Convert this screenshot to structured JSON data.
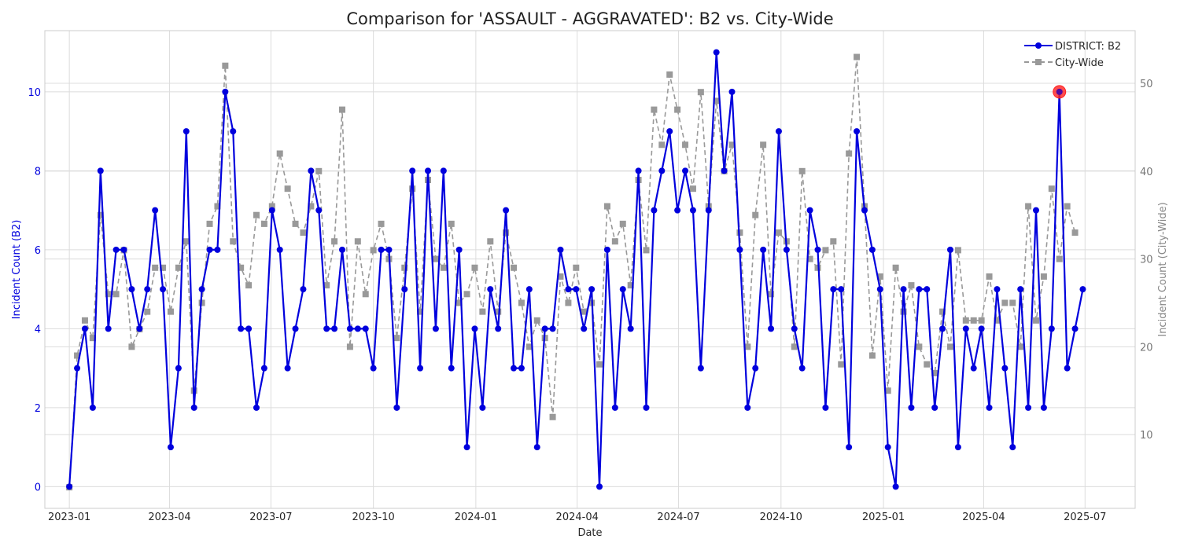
{
  "chart_data": {
    "type": "line",
    "title": "Comparison for 'ASSAULT - AGGRAVATED': B2 vs. City-Wide",
    "xlabel": "Date",
    "ylabel_left": "Incident Count (B2)",
    "ylabel_right": "Incident Count (City-Wide)",
    "ylim_left": [
      -0.55,
      11.55
    ],
    "ylim_right": [
      1.6,
      56.0
    ],
    "yticks_left": [
      0,
      2,
      4,
      6,
      8,
      10
    ],
    "yticks_right": [
      10,
      20,
      30,
      40,
      50
    ],
    "xlim": [
      "2022-12-10",
      "2025-08-15"
    ],
    "xticks": [
      {
        "date": "2023-01-01",
        "label": "2023-01"
      },
      {
        "date": "2023-04-01",
        "label": "2023-04"
      },
      {
        "date": "2023-07-01",
        "label": "2023-07"
      },
      {
        "date": "2023-10-01",
        "label": "2023-10"
      },
      {
        "date": "2024-01-01",
        "label": "2024-01"
      },
      {
        "date": "2024-04-01",
        "label": "2024-04"
      },
      {
        "date": "2024-07-01",
        "label": "2024-07"
      },
      {
        "date": "2024-10-01",
        "label": "2024-10"
      },
      {
        "date": "2025-01-01",
        "label": "2025-01"
      },
      {
        "date": "2025-04-01",
        "label": "2025-04"
      },
      {
        "date": "2025-07-01",
        "label": "2025-07"
      }
    ],
    "grid": true,
    "legend_position": "top-right",
    "x_start": "2023-01-01",
    "x_interval_days": 7,
    "series": [
      {
        "name": "DISTRICT: B2",
        "axis": "left",
        "color": "#0000dd",
        "marker": "circle",
        "line_style": "solid",
        "values": [
          0,
          3,
          4,
          2,
          8,
          4,
          6,
          6,
          5,
          4,
          5,
          7,
          5,
          1,
          3,
          9,
          2,
          5,
          6,
          6,
          10,
          9,
          4,
          4,
          2,
          3,
          7,
          6,
          3,
          4,
          5,
          8,
          7,
          4,
          4,
          6,
          4,
          4,
          4,
          3,
          6,
          6,
          2,
          5,
          8,
          3,
          8,
          4,
          8,
          3,
          6,
          1,
          4,
          2,
          5,
          4,
          7,
          3,
          3,
          5,
          1,
          4,
          4,
          6,
          5,
          5,
          4,
          5,
          0,
          6,
          2,
          5,
          4,
          8,
          2,
          7,
          8,
          9,
          7,
          8,
          7,
          3,
          7,
          11,
          8,
          10,
          6,
          2,
          3,
          6,
          4,
          9,
          6,
          4,
          3,
          7,
          6,
          2,
          5,
          5,
          1,
          9,
          7,
          6,
          5,
          1,
          0,
          5,
          2,
          5,
          5,
          2,
          4,
          6,
          1,
          4,
          3,
          4,
          2,
          5,
          3,
          1,
          5,
          2,
          7,
          2,
          4,
          10,
          3,
          4,
          5
        ]
      },
      {
        "name": "City-Wide",
        "axis": "right",
        "color": "#999999",
        "marker": "square",
        "line_style": "dashed",
        "values": [
          4,
          19,
          23,
          21,
          35,
          26,
          26,
          31,
          20,
          22,
          24,
          29,
          29,
          24,
          29,
          32,
          15,
          25,
          34,
          36,
          52,
          32,
          29,
          27,
          35,
          34,
          36,
          42,
          38,
          34,
          33,
          36,
          40,
          27,
          32,
          47,
          20,
          32,
          26,
          31,
          34,
          30,
          21,
          29,
          38,
          24,
          39,
          30,
          29,
          34,
          25,
          26,
          29,
          24,
          32,
          24,
          33,
          29,
          25,
          20,
          23,
          21,
          12,
          28,
          25,
          29,
          24,
          25,
          18,
          36,
          32,
          34,
          27,
          39,
          31,
          47,
          43,
          51,
          47,
          43,
          38,
          49,
          36,
          48,
          40,
          43,
          33,
          20,
          35,
          43,
          26,
          33,
          32,
          20,
          40,
          30,
          29,
          31,
          32,
          18,
          42,
          53,
          36,
          19,
          28,
          15,
          29,
          24,
          27,
          20,
          18,
          17,
          24,
          20,
          31,
          23,
          23,
          23,
          28,
          23,
          25,
          25,
          20,
          36,
          23,
          28,
          38,
          30,
          36,
          33
        ]
      }
    ],
    "highlight": {
      "series": "DISTRICT: B2",
      "index": 127,
      "color": "#ff2020"
    }
  }
}
